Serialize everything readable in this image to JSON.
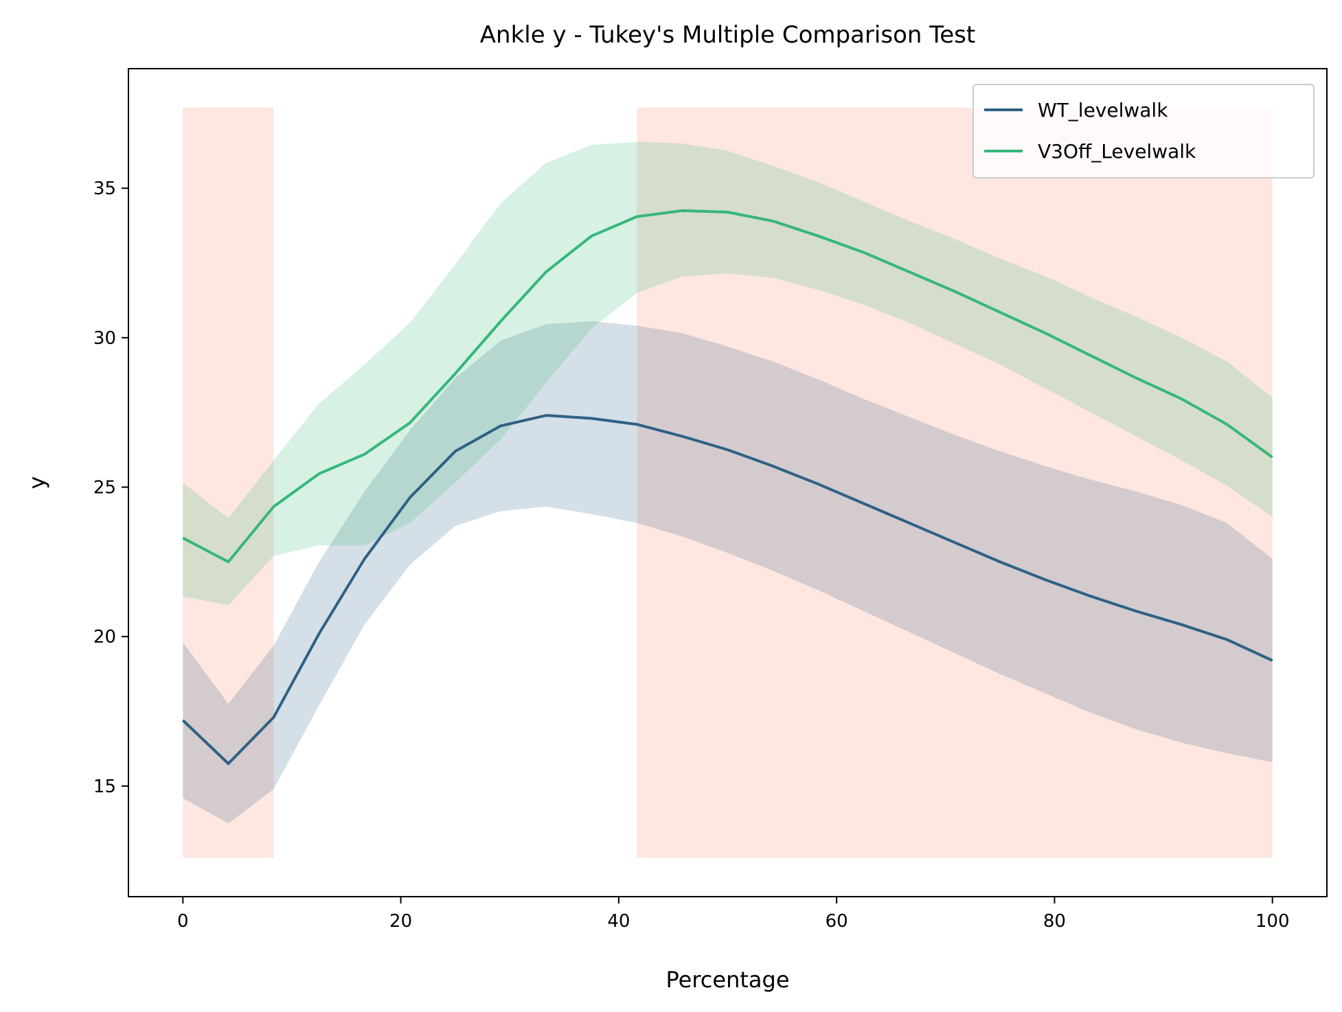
{
  "chart_data": {
    "type": "line",
    "title": "Ankle y - Tukey's Multiple Comparison Test",
    "xlabel": "Percentage",
    "ylabel": "y",
    "xlim": [
      -5,
      105
    ],
    "ylim": [
      11.3,
      39.0
    ],
    "x_ticks": [
      0,
      20,
      40,
      60,
      80,
      100
    ],
    "y_ticks": [
      15,
      20,
      25,
      30,
      35
    ],
    "grid": false,
    "legend_position": "top-right",
    "x": [
      0,
      4.17,
      8.33,
      12.5,
      16.67,
      20.83,
      25,
      29.17,
      33.33,
      37.5,
      41.67,
      45.83,
      50,
      54.17,
      58.33,
      62.5,
      66.67,
      70.83,
      75,
      79.17,
      83.33,
      87.5,
      91.67,
      95.83,
      100
    ],
    "series": [
      {
        "name": "WT_levelwalk",
        "color": "#2e6185",
        "values": [
          17.2,
          15.75,
          17.3,
          20.1,
          22.6,
          24.65,
          26.2,
          27.05,
          27.4,
          27.3,
          27.1,
          26.7,
          26.25,
          25.7,
          25.1,
          24.45,
          23.8,
          23.15,
          22.5,
          21.9,
          21.35,
          20.85,
          20.4,
          19.9,
          19.2
        ],
        "lower": [
          14.6,
          13.75,
          14.9,
          17.7,
          20.4,
          22.4,
          23.7,
          24.2,
          24.35,
          24.1,
          23.8,
          23.35,
          22.8,
          22.2,
          21.55,
          20.85,
          20.15,
          19.45,
          18.75,
          18.1,
          17.45,
          16.9,
          16.45,
          16.1,
          15.8
        ],
        "upper": [
          19.8,
          17.75,
          19.7,
          22.5,
          24.85,
          26.9,
          28.65,
          29.9,
          30.45,
          30.55,
          30.4,
          30.15,
          29.7,
          29.2,
          28.6,
          27.95,
          27.35,
          26.75,
          26.2,
          25.7,
          25.25,
          24.85,
          24.4,
          23.8,
          22.6
        ]
      },
      {
        "name": "V3Off_Levelwalk",
        "color": "#35b779",
        "values": [
          23.3,
          22.5,
          24.35,
          25.45,
          26.1,
          27.15,
          28.8,
          30.55,
          32.2,
          33.4,
          34.05,
          34.25,
          34.2,
          33.9,
          33.4,
          32.85,
          32.2,
          31.55,
          30.85,
          30.15,
          29.4,
          28.65,
          27.95,
          27.1,
          26.0
        ],
        "lower": [
          21.35,
          21.05,
          22.7,
          23.05,
          23.05,
          23.8,
          25.15,
          26.6,
          28.5,
          30.3,
          31.5,
          32.05,
          32.15,
          32.0,
          31.6,
          31.1,
          30.5,
          29.8,
          29.1,
          28.3,
          27.5,
          26.7,
          25.9,
          25.05,
          24.0
        ],
        "upper": [
          25.15,
          23.95,
          25.9,
          27.8,
          29.1,
          30.5,
          32.45,
          34.5,
          35.85,
          36.45,
          36.55,
          36.5,
          36.25,
          35.75,
          35.2,
          34.55,
          33.9,
          33.3,
          32.65,
          32.05,
          31.35,
          30.7,
          30.0,
          29.2,
          28.0
        ]
      }
    ],
    "significant_regions": [
      {
        "x_start": 0,
        "x_end": 8.33,
        "y_start": 12.6,
        "y_end": 37.7,
        "color": "#fde7e0"
      },
      {
        "x_start": 41.67,
        "x_end": 100,
        "y_start": 12.6,
        "y_end": 37.7,
        "color": "#fde7e0"
      }
    ]
  }
}
